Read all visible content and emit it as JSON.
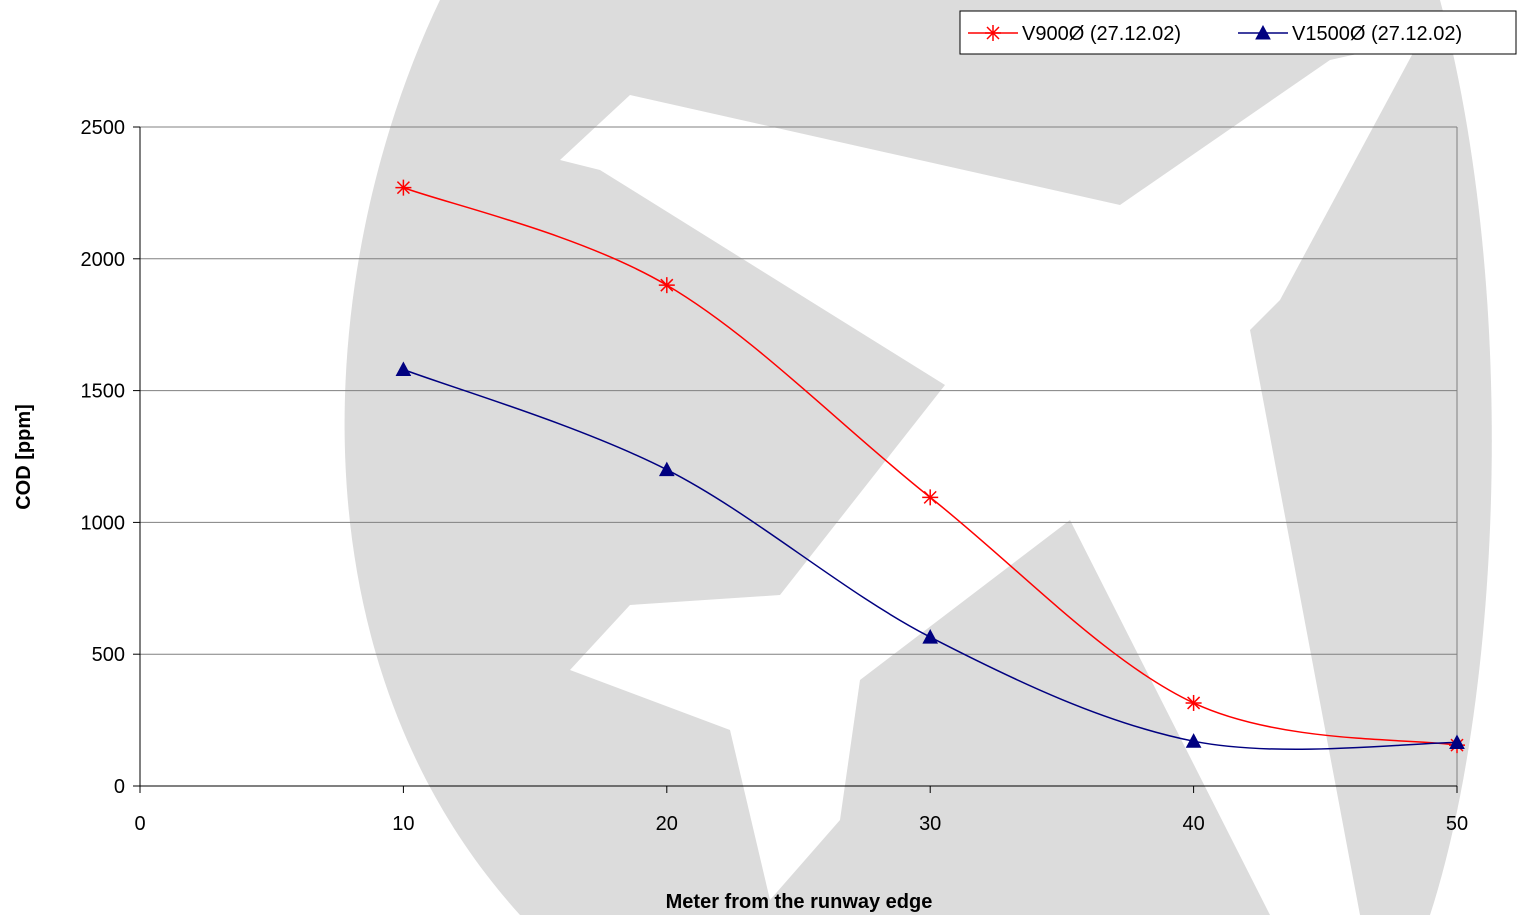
{
  "chart_data": {
    "type": "line",
    "title": "",
    "xlabel": "Meter from the runway edge",
    "ylabel": "COD [ppm]",
    "xlim": [
      0,
      50
    ],
    "ylim": [
      0,
      2500
    ],
    "x_ticks": [
      "0",
      "10",
      "20",
      "30",
      "40",
      "50"
    ],
    "y_ticks": [
      "0",
      "500",
      "1000",
      "1500",
      "2000",
      "2500"
    ],
    "grid": "horizontal",
    "legend_position": "top-right",
    "series": [
      {
        "name": "V900Ø (27.12.02)",
        "color": "#ff0000",
        "marker": "asterisk",
        "x": [
          10,
          20,
          30,
          40,
          50
        ],
        "values": [
          2270,
          1900,
          1095,
          315,
          155
        ]
      },
      {
        "name": "V1500Ø (27.12.02)",
        "color": "#000080",
        "marker": "triangle",
        "x": [
          10,
          20,
          30,
          40,
          50
        ],
        "values": [
          1580,
          1200,
          565,
          170,
          165
        ]
      }
    ],
    "background_watermark": "airplane-watermark-icon"
  }
}
